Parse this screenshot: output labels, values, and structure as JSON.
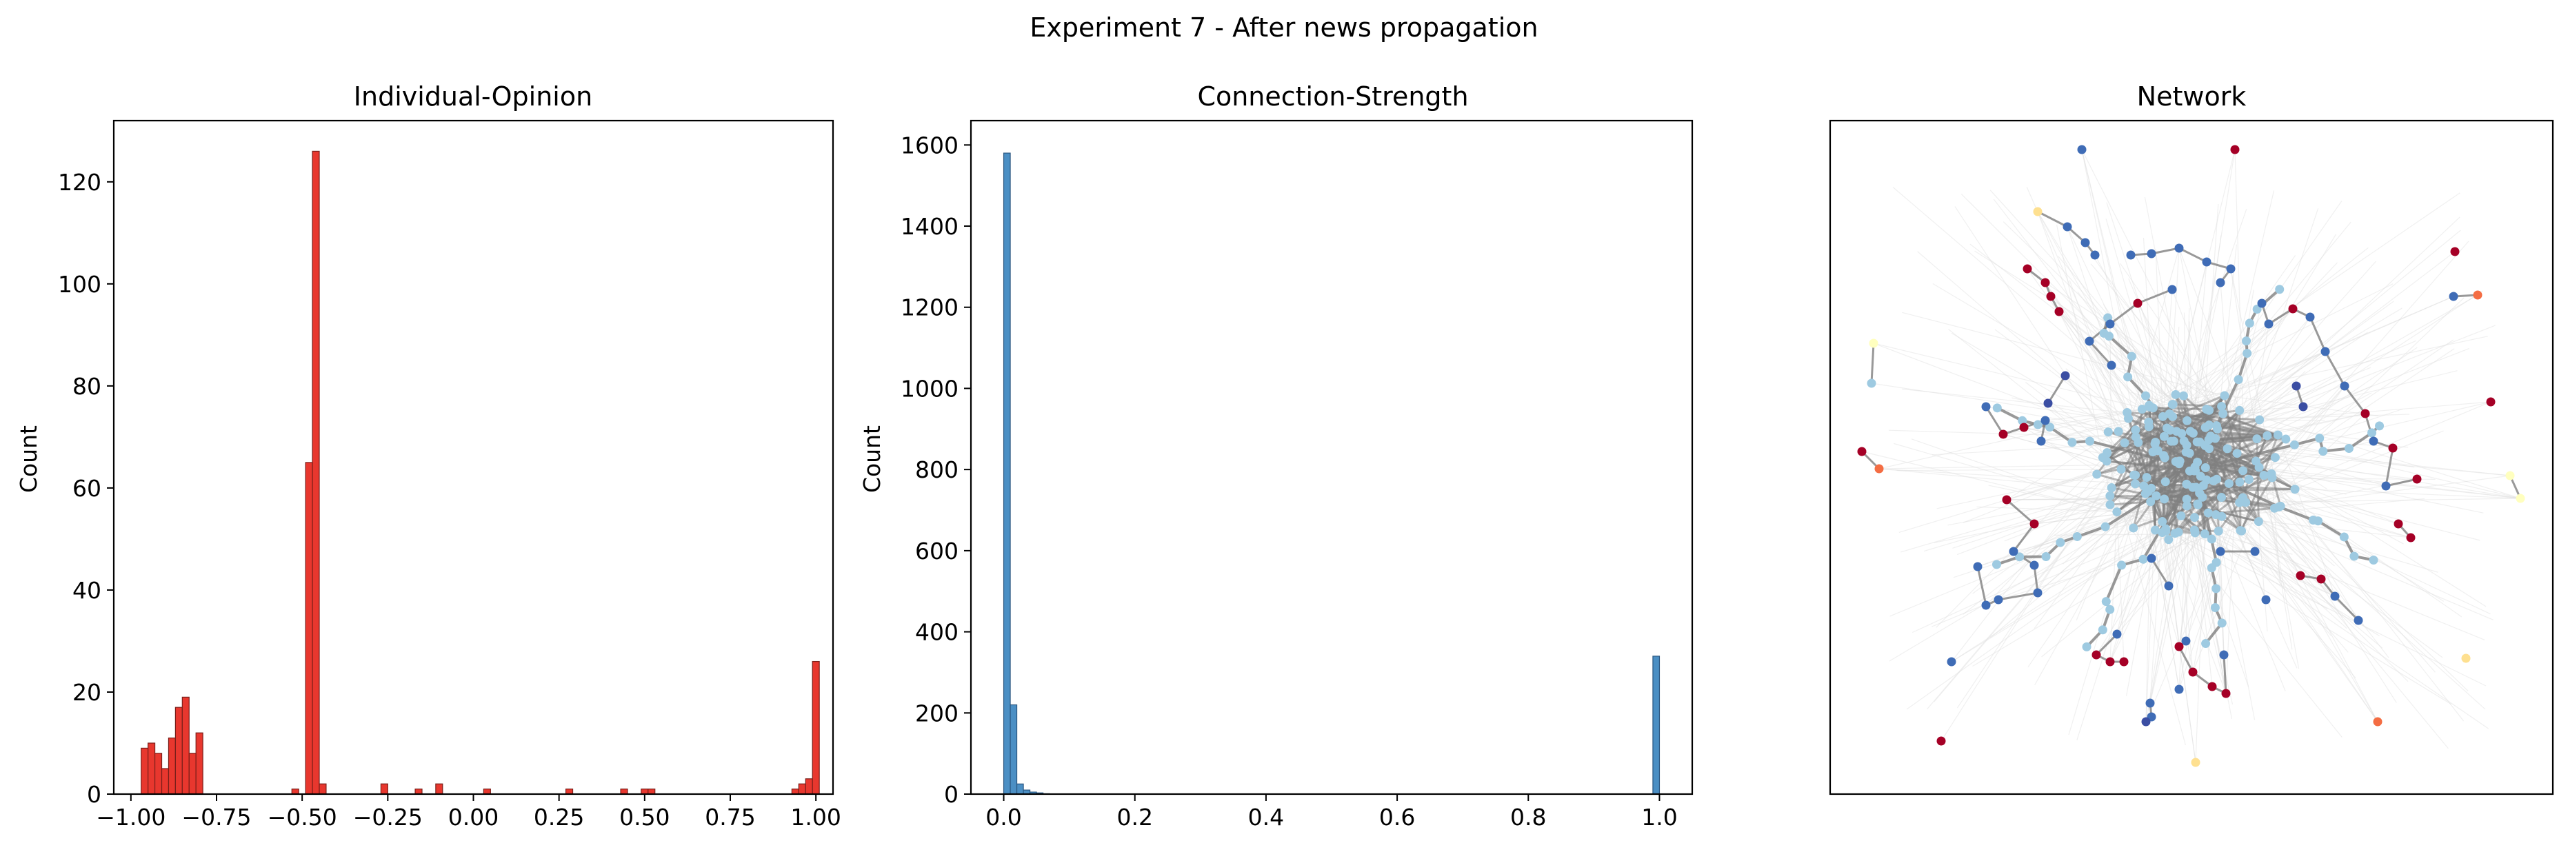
{
  "figure": {
    "suptitle": "Experiment 7 - After news propagation"
  },
  "chart_data": [
    {
      "type": "bar",
      "title": "Individual-Opinion",
      "xlabel": "",
      "ylabel": "Count",
      "xlim": [
        -1.05,
        1.05
      ],
      "ylim": [
        0,
        132
      ],
      "xticks": [
        -1.0,
        -0.75,
        -0.5,
        -0.25,
        0.0,
        0.25,
        0.5,
        0.75,
        1.0
      ],
      "xtick_labels": [
        "−1.00",
        "−0.75",
        "−0.50",
        "−0.25",
        "0.00",
        "0.25",
        "0.50",
        "0.75",
        "1.00"
      ],
      "yticks": [
        0,
        20,
        40,
        60,
        80,
        100,
        120
      ],
      "ytick_labels": [
        "0",
        "20",
        "40",
        "60",
        "80",
        "100",
        "120"
      ],
      "bin_width": 0.02,
      "bins": [
        {
          "x": -0.96,
          "v": 9
        },
        {
          "x": -0.94,
          "v": 10
        },
        {
          "x": -0.92,
          "v": 8
        },
        {
          "x": -0.9,
          "v": 5
        },
        {
          "x": -0.88,
          "v": 11
        },
        {
          "x": -0.86,
          "v": 17
        },
        {
          "x": -0.84,
          "v": 19
        },
        {
          "x": -0.82,
          "v": 8
        },
        {
          "x": -0.8,
          "v": 12
        },
        {
          "x": -0.52,
          "v": 1
        },
        {
          "x": -0.48,
          "v": 65
        },
        {
          "x": -0.46,
          "v": 126
        },
        {
          "x": -0.44,
          "v": 2
        },
        {
          "x": -0.26,
          "v": 2
        },
        {
          "x": -0.16,
          "v": 1
        },
        {
          "x": -0.1,
          "v": 2
        },
        {
          "x": 0.04,
          "v": 1
        },
        {
          "x": 0.28,
          "v": 1
        },
        {
          "x": 0.44,
          "v": 1
        },
        {
          "x": 0.5,
          "v": 1
        },
        {
          "x": 0.52,
          "v": 1
        },
        {
          "x": 0.94,
          "v": 1
        },
        {
          "x": 0.96,
          "v": 2
        },
        {
          "x": 0.98,
          "v": 3
        },
        {
          "x": 1.0,
          "v": 26
        }
      ],
      "colors": {
        "bar": "#e8372e",
        "edge": "#7a1f1a"
      }
    },
    {
      "type": "bar",
      "title": "Connection-Strength",
      "xlabel": "",
      "ylabel": "Count",
      "xlim": [
        -0.05,
        1.05
      ],
      "ylim": [
        0,
        1660
      ],
      "xticks": [
        0.0,
        0.2,
        0.4,
        0.6,
        0.8,
        1.0
      ],
      "xtick_labels": [
        "0.0",
        "0.2",
        "0.4",
        "0.6",
        "0.8",
        "1.0"
      ],
      "yticks": [
        0,
        200,
        400,
        600,
        800,
        1000,
        1200,
        1400,
        1600
      ],
      "ytick_labels": [
        "0",
        "200",
        "400",
        "600",
        "800",
        "1000",
        "1200",
        "1400",
        "1600"
      ],
      "bin_width": 0.01,
      "bins": [
        {
          "x": 0.005,
          "v": 1580
        },
        {
          "x": 0.015,
          "v": 220
        },
        {
          "x": 0.025,
          "v": 25
        },
        {
          "x": 0.035,
          "v": 10
        },
        {
          "x": 0.045,
          "v": 5
        },
        {
          "x": 0.055,
          "v": 3
        },
        {
          "x": 0.065,
          "v": 1
        },
        {
          "x": 0.995,
          "v": 340
        }
      ],
      "colors": {
        "bar": "#4b8fc4",
        "edge": "#2a5680"
      }
    },
    {
      "type": "network",
      "title": "Network",
      "colors": {
        "light_blue": "#9ecae1",
        "dark_blue": "#3b4ea3",
        "mid_blue": "#3f6cb6",
        "red": "#a50026",
        "orange": "#f46d43",
        "yellow": "#fee090",
        "cream": "#ffffbf",
        "edge_light": "#dedede",
        "edge_dark": "#7f7f7f"
      }
    }
  ]
}
